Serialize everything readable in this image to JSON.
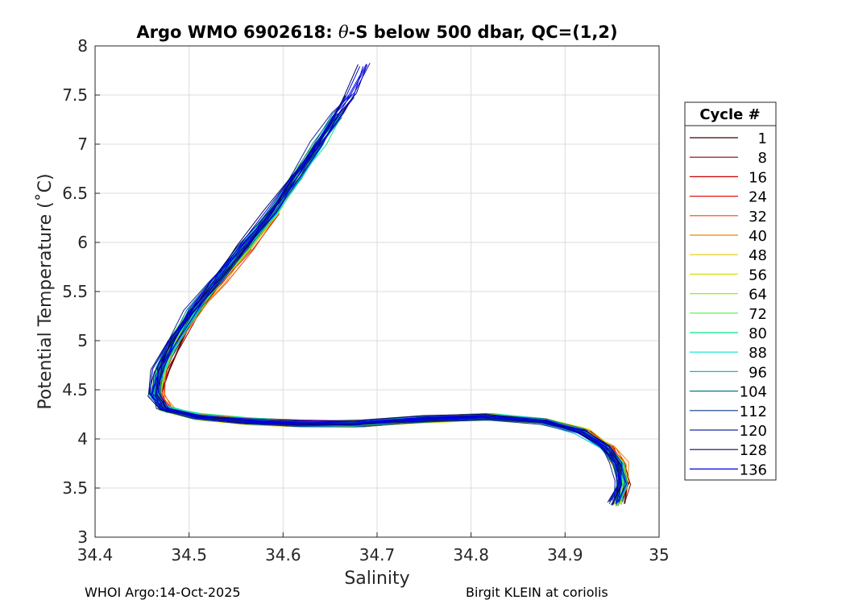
{
  "chart_data": {
    "type": "line",
    "title_prefix": "Argo WMO 6902618: ",
    "title_theta": "θ",
    "title_suffix": "-S below 500 dbar,  QC=(1,2)",
    "xlabel": "Salinity",
    "ylabel": "Potential Temperature (˚C)",
    "xlim": [
      34.4,
      35
    ],
    "ylim": [
      3,
      8
    ],
    "xticks": [
      "34.4",
      "34.5",
      "34.6",
      "34.7",
      "34.8",
      "34.9",
      "35"
    ],
    "yticks": [
      "3",
      "3.5",
      "4",
      "4.5",
      "5",
      "5.5",
      "6",
      "6.5",
      "7",
      "7.5",
      "8"
    ],
    "grid": true,
    "legend": {
      "title": "Cycle #",
      "placement": "right-outside",
      "entries": [
        {
          "label": "1",
          "color": "#3d0000"
        },
        {
          "label": "8",
          "color": "#8c0000"
        },
        {
          "label": "16",
          "color": "#c80000"
        },
        {
          "label": "24",
          "color": "#e61414"
        },
        {
          "label": "32",
          "color": "#f04a00"
        },
        {
          "label": "40",
          "color": "#e88a00"
        },
        {
          "label": "48",
          "color": "#e6c800"
        },
        {
          "label": "56",
          "color": "#d6e600"
        },
        {
          "label": "64",
          "color": "#9cf000"
        },
        {
          "label": "72",
          "color": "#4cf04c"
        },
        {
          "label": "80",
          "color": "#00e68c"
        },
        {
          "label": "88",
          "color": "#00e6d2"
        },
        {
          "label": "96",
          "color": "#00bedc"
        },
        {
          "label": "104",
          "color": "#007a8c"
        },
        {
          "label": "112",
          "color": "#0a3c8c"
        },
        {
          "label": "120",
          "color": "#1a2aa0"
        },
        {
          "label": "128",
          "color": "#0a0a5a"
        },
        {
          "label": "136",
          "color": "#0000e6"
        }
      ]
    },
    "base_curve": [
      {
        "s": 34.955,
        "t": 3.35
      },
      {
        "s": 34.962,
        "t": 3.55
      },
      {
        "s": 34.958,
        "t": 3.75
      },
      {
        "s": 34.945,
        "t": 3.92
      },
      {
        "s": 34.92,
        "t": 4.07
      },
      {
        "s": 34.88,
        "t": 4.17
      },
      {
        "s": 34.82,
        "t": 4.22
      },
      {
        "s": 34.75,
        "t": 4.2
      },
      {
        "s": 34.68,
        "t": 4.16
      },
      {
        "s": 34.62,
        "t": 4.16
      },
      {
        "s": 34.56,
        "t": 4.18
      },
      {
        "s": 34.51,
        "t": 4.22
      },
      {
        "s": 34.475,
        "t": 4.3
      },
      {
        "s": 34.465,
        "t": 4.45
      },
      {
        "s": 34.47,
        "t": 4.7
      },
      {
        "s": 34.485,
        "t": 5.0
      },
      {
        "s": 34.505,
        "t": 5.3
      },
      {
        "s": 34.53,
        "t": 5.6
      },
      {
        "s": 34.56,
        "t": 5.95
      },
      {
        "s": 34.59,
        "t": 6.3
      },
      {
        "s": 34.615,
        "t": 6.65
      },
      {
        "s": 34.64,
        "t": 7.0
      },
      {
        "s": 34.66,
        "t": 7.3
      },
      {
        "s": 34.675,
        "t": 7.5
      },
      {
        "s": 34.69,
        "t": 7.8
      }
    ]
  },
  "footer": {
    "left": "WHOI Argo:14-Oct-2025",
    "right": "Birgit KLEIN at coriolis"
  }
}
